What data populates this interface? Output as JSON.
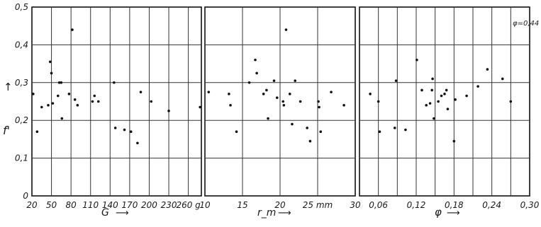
{
  "chart_data": [
    {
      "type": "scatter",
      "ylabel": "f'",
      "xlabel": "G",
      "x_unit": "g",
      "ylim": [
        0,
        0.5
      ],
      "xlim": [
        20,
        280
      ],
      "grid": true,
      "x_ticks": [
        20,
        50,
        80,
        110,
        140,
        170,
        200,
        230,
        260
      ],
      "y_ticks": [
        0,
        0.1,
        0.2,
        0.3,
        0.4,
        0.5
      ],
      "x_tick_labels": [
        "20",
        "50",
        "80",
        "110",
        "140",
        "170",
        "200",
        "230",
        "260 g"
      ],
      "y_tick_labels": [
        "0",
        "0,1",
        "0,2",
        "0,3",
        "0,4",
        "0,5"
      ],
      "points": [
        {
          "x": 22,
          "y": 0.27
        },
        {
          "x": 28,
          "y": 0.17
        },
        {
          "x": 35,
          "y": 0.235
        },
        {
          "x": 45,
          "y": 0.24
        },
        {
          "x": 48,
          "y": 0.355
        },
        {
          "x": 50,
          "y": 0.325
        },
        {
          "x": 52,
          "y": 0.245
        },
        {
          "x": 60,
          "y": 0.265
        },
        {
          "x": 62,
          "y": 0.3
        },
        {
          "x": 65,
          "y": 0.3
        },
        {
          "x": 66,
          "y": 0.205
        },
        {
          "x": 77,
          "y": 0.27
        },
        {
          "x": 82,
          "y": 0.44
        },
        {
          "x": 86,
          "y": 0.255
        },
        {
          "x": 90,
          "y": 0.24
        },
        {
          "x": 113,
          "y": 0.25
        },
        {
          "x": 116,
          "y": 0.265
        },
        {
          "x": 122,
          "y": 0.25
        },
        {
          "x": 146,
          "y": 0.3
        },
        {
          "x": 148,
          "y": 0.18
        },
        {
          "x": 162,
          "y": 0.175
        },
        {
          "x": 172,
          "y": 0.17
        },
        {
          "x": 182,
          "y": 0.14
        },
        {
          "x": 187,
          "y": 0.275
        },
        {
          "x": 203,
          "y": 0.25
        },
        {
          "x": 230,
          "y": 0.225
        },
        {
          "x": 278,
          "y": 0.235
        }
      ]
    },
    {
      "type": "scatter",
      "xlabel": "r_m",
      "x_unit": "mm",
      "ylim": [
        0,
        0.5
      ],
      "xlim": [
        10,
        30
      ],
      "grid": true,
      "x_ticks": [
        10,
        15,
        20,
        25,
        30
      ],
      "x_tick_labels": [
        "10",
        "15",
        "20",
        "25 mm",
        "30"
      ],
      "points": [
        {
          "x": 10.5,
          "y": 0.275
        },
        {
          "x": 13.2,
          "y": 0.27
        },
        {
          "x": 13.4,
          "y": 0.24
        },
        {
          "x": 14.2,
          "y": 0.17
        },
        {
          "x": 15.9,
          "y": 0.3
        },
        {
          "x": 16.7,
          "y": 0.36
        },
        {
          "x": 16.9,
          "y": 0.325
        },
        {
          "x": 17.8,
          "y": 0.27
        },
        {
          "x": 18.2,
          "y": 0.28
        },
        {
          "x": 18.4,
          "y": 0.205
        },
        {
          "x": 19.2,
          "y": 0.305
        },
        {
          "x": 19.6,
          "y": 0.26
        },
        {
          "x": 20.4,
          "y": 0.25
        },
        {
          "x": 20.5,
          "y": 0.24
        },
        {
          "x": 20.8,
          "y": 0.44
        },
        {
          "x": 21.3,
          "y": 0.27
        },
        {
          "x": 21.6,
          "y": 0.19
        },
        {
          "x": 22.0,
          "y": 0.305
        },
        {
          "x": 22.7,
          "y": 0.25
        },
        {
          "x": 23.6,
          "y": 0.18
        },
        {
          "x": 24.0,
          "y": 0.145
        },
        {
          "x": 25.1,
          "y": 0.25
        },
        {
          "x": 25.2,
          "y": 0.235
        },
        {
          "x": 25.4,
          "y": 0.17
        },
        {
          "x": 26.8,
          "y": 0.275
        },
        {
          "x": 28.5,
          "y": 0.24
        }
      ]
    },
    {
      "type": "scatter",
      "xlabel": "φ",
      "ylim": [
        0,
        0.5
      ],
      "xlim": [
        0.03,
        0.3
      ],
      "grid": true,
      "x_ticks": [
        0.06,
        0.12,
        0.18,
        0.24,
        0.3
      ],
      "x_tick_labels": [
        "0,06",
        "0,12",
        "0,18",
        "0,24",
        "0,30"
      ],
      "annotation": "φ=0,44",
      "points": [
        {
          "x": 0.047,
          "y": 0.27
        },
        {
          "x": 0.06,
          "y": 0.25
        },
        {
          "x": 0.062,
          "y": 0.17
        },
        {
          "x": 0.086,
          "y": 0.18
        },
        {
          "x": 0.088,
          "y": 0.305
        },
        {
          "x": 0.103,
          "y": 0.175
        },
        {
          "x": 0.121,
          "y": 0.36
        },
        {
          "x": 0.129,
          "y": 0.28
        },
        {
          "x": 0.136,
          "y": 0.24
        },
        {
          "x": 0.142,
          "y": 0.245
        },
        {
          "x": 0.145,
          "y": 0.28
        },
        {
          "x": 0.146,
          "y": 0.31
        },
        {
          "x": 0.148,
          "y": 0.205
        },
        {
          "x": 0.155,
          "y": 0.25
        },
        {
          "x": 0.16,
          "y": 0.265
        },
        {
          "x": 0.165,
          "y": 0.27
        },
        {
          "x": 0.168,
          "y": 0.28
        },
        {
          "x": 0.17,
          "y": 0.23
        },
        {
          "x": 0.18,
          "y": 0.145
        },
        {
          "x": 0.182,
          "y": 0.255
        },
        {
          "x": 0.2,
          "y": 0.265
        },
        {
          "x": 0.218,
          "y": 0.29
        },
        {
          "x": 0.233,
          "y": 0.335
        },
        {
          "x": 0.257,
          "y": 0.31
        },
        {
          "x": 0.27,
          "y": 0.25
        }
      ]
    }
  ]
}
